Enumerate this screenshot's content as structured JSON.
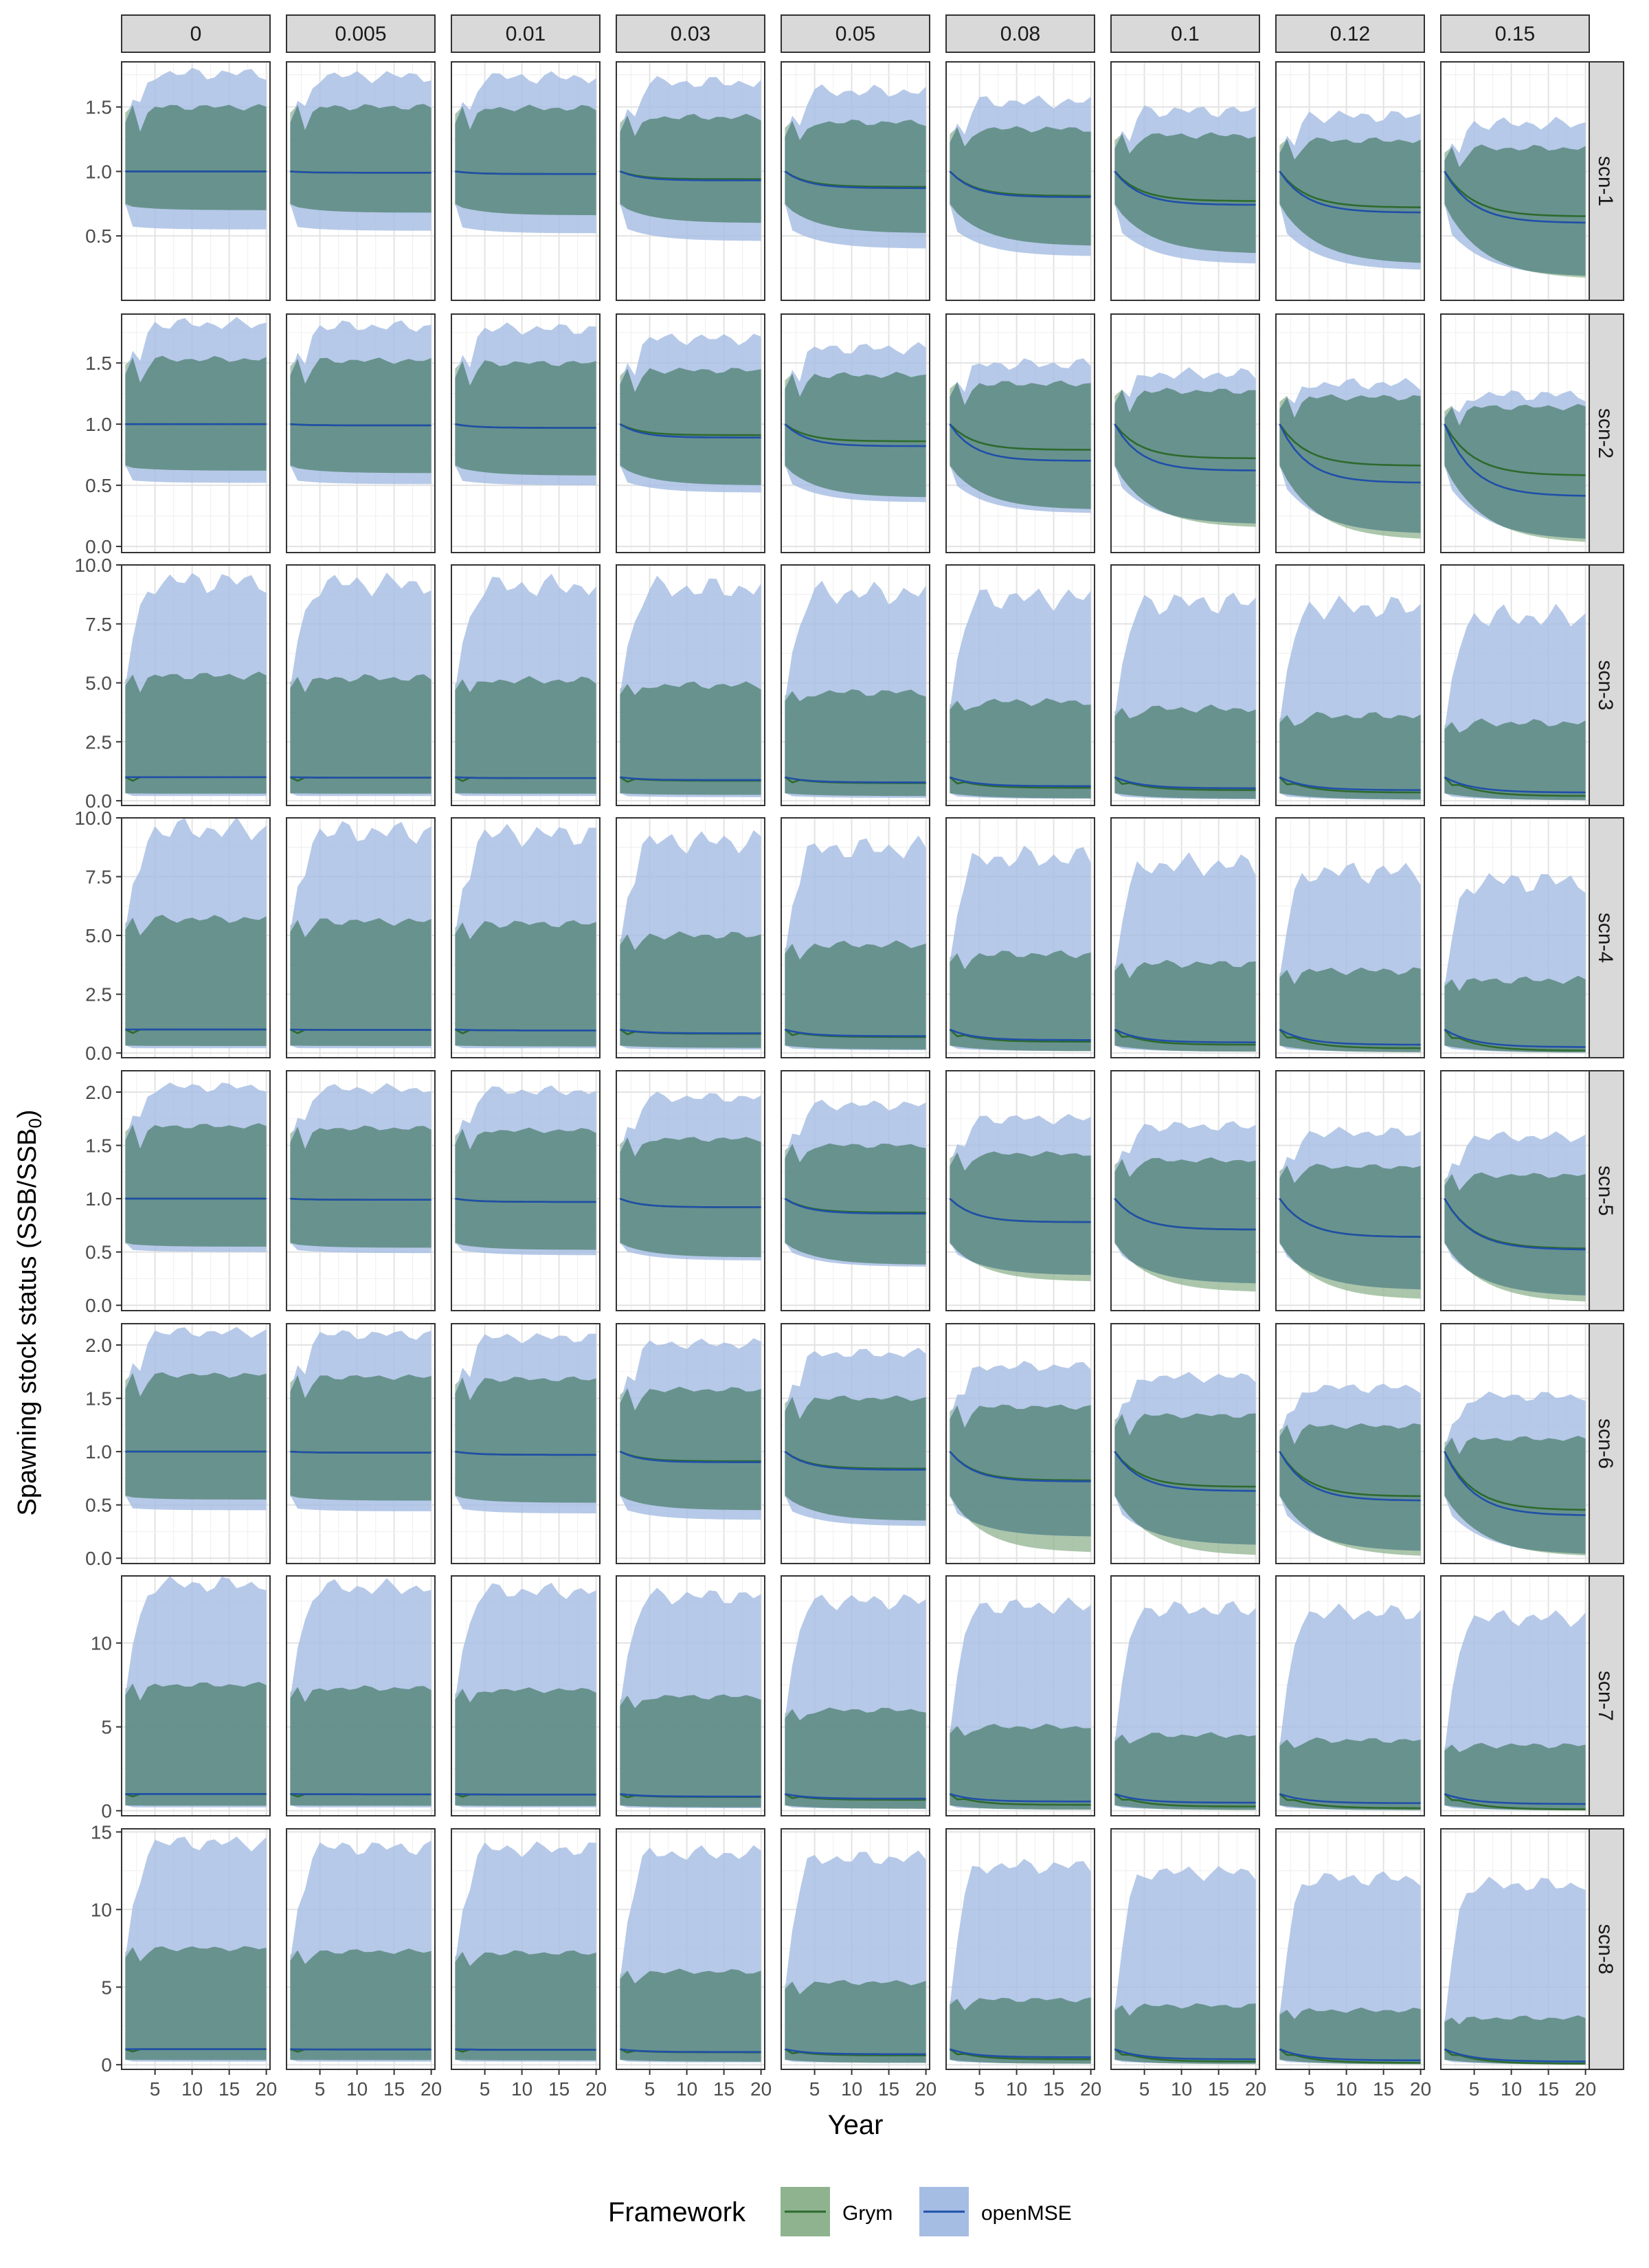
{
  "chart_data": {
    "type": "area",
    "facet_columns": [
      "0",
      "0.005",
      "0.01",
      "0.03",
      "0.05",
      "0.08",
      "0.1",
      "0.12",
      "0.15"
    ],
    "facet_rows": [
      "scn-1",
      "scn-2",
      "scn-3",
      "scn-4",
      "scn-5",
      "scn-6",
      "scn-7",
      "scn-8"
    ],
    "xlabel": "Year",
    "ylabel": "Spawning stock status (SSB/SSB",
    "ylabel_subscript": "0",
    "ylabel_close": ")",
    "x_ticks": [
      5,
      10,
      15,
      20
    ],
    "x_range": [
      0.5,
      20.5
    ],
    "grid": true,
    "legend": {
      "title": "Framework",
      "position": "bottom",
      "entries": [
        {
          "name": "Grym",
          "color": "#2d6a2d",
          "fill": "#8fb38f"
        },
        {
          "name": "openMSE",
          "color": "#1f4fa8",
          "fill": "#a6bde3"
        }
      ]
    },
    "rows": [
      {
        "scenario": "scn-1",
        "ylim": [
          0,
          1.85
        ],
        "yticks": [
          0.5,
          1.0,
          1.5
        ],
        "ytick_labels": [
          "0.5",
          "1.0",
          "1.5"
        ],
        "series": {
          "Grym": {
            "median_final": [
              1.0,
              0.99,
              0.98,
              0.94,
              0.88,
              0.81,
              0.77,
              0.72,
              0.65
            ],
            "upper_final": [
              1.5,
              1.5,
              1.49,
              1.42,
              1.38,
              1.33,
              1.28,
              1.24,
              1.18
            ],
            "lower_final": [
              0.7,
              0.68,
              0.66,
              0.6,
              0.52,
              0.42,
              0.36,
              0.28,
              0.16
            ]
          },
          "openMSE": {
            "median_final": [
              1.0,
              0.99,
              0.98,
              0.93,
              0.87,
              0.8,
              0.74,
              0.68,
              0.6
            ],
            "upper_final": [
              1.76,
              1.74,
              1.73,
              1.69,
              1.62,
              1.54,
              1.47,
              1.43,
              1.37
            ],
            "lower_final": [
              0.55,
              0.54,
              0.52,
              0.46,
              0.4,
              0.34,
              0.28,
              0.23,
              0.18
            ]
          }
        }
      },
      {
        "scenario": "scn-2",
        "ylim": [
          -0.05,
          1.9
        ],
        "yticks": [
          0.0,
          0.5,
          1.0,
          1.5
        ],
        "ytick_labels": [
          "0.0",
          "0.5",
          "1.0",
          "1.5"
        ],
        "series": {
          "Grym": {
            "median_final": [
              1.0,
              0.99,
              0.97,
              0.91,
              0.86,
              0.79,
              0.72,
              0.66,
              0.58
            ],
            "upper_final": [
              1.53,
              1.52,
              1.5,
              1.44,
              1.4,
              1.33,
              1.27,
              1.22,
              1.14
            ],
            "lower_final": [
              0.62,
              0.6,
              0.58,
              0.5,
              0.4,
              0.3,
              0.15,
              0.05,
              0.02
            ]
          },
          "openMSE": {
            "median_final": [
              1.0,
              0.99,
              0.97,
              0.89,
              0.82,
              0.7,
              0.62,
              0.52,
              0.41
            ],
            "upper_final": [
              1.82,
              1.8,
              1.78,
              1.7,
              1.62,
              1.49,
              1.41,
              1.33,
              1.24
            ],
            "lower_final": [
              0.52,
              0.51,
              0.5,
              0.44,
              0.36,
              0.27,
              0.18,
              0.1,
              0.05
            ]
          }
        }
      },
      {
        "scenario": "scn-3",
        "ylim": [
          -0.2,
          10.0
        ],
        "yticks": [
          0.0,
          2.5,
          5.0,
          7.5,
          10.0
        ],
        "ytick_labels": [
          "0.0",
          "2.5",
          "5.0",
          "7.5",
          "10.0"
        ],
        "series": {
          "Grym": {
            "median_final": [
              1.0,
              0.98,
              0.96,
              0.85,
              0.75,
              0.55,
              0.45,
              0.35,
              0.2
            ],
            "upper_final": [
              5.3,
              5.2,
              5.1,
              4.9,
              4.6,
              4.2,
              3.9,
              3.6,
              3.3
            ],
            "lower_final": [
              0.3,
              0.3,
              0.3,
              0.25,
              0.2,
              0.1,
              0.08,
              0.05,
              0.02
            ]
          },
          "openMSE": {
            "median_final": [
              1.0,
              0.98,
              0.96,
              0.88,
              0.78,
              0.62,
              0.53,
              0.45,
              0.35
            ],
            "upper_final": [
              9.3,
              9.2,
              9.1,
              9.0,
              8.8,
              8.6,
              8.4,
              8.2,
              7.8
            ],
            "lower_final": [
              0.2,
              0.2,
              0.2,
              0.15,
              0.12,
              0.08,
              0.06,
              0.04,
              0.02
            ]
          }
        }
      },
      {
        "scenario": "scn-4",
        "ylim": [
          -0.2,
          10.0
        ],
        "yticks": [
          0.0,
          2.5,
          5.0,
          7.5,
          10.0
        ],
        "ytick_labels": [
          "0.0",
          "2.5",
          "5.0",
          "7.5",
          "10.0"
        ],
        "series": {
          "Grym": {
            "median_final": [
              1.0,
              0.98,
              0.96,
              0.82,
              0.68,
              0.48,
              0.35,
              0.2,
              0.1
            ],
            "upper_final": [
              5.7,
              5.6,
              5.5,
              5.0,
              4.6,
              4.2,
              3.8,
              3.5,
              3.1
            ],
            "lower_final": [
              0.3,
              0.3,
              0.28,
              0.22,
              0.15,
              0.08,
              0.05,
              0.02,
              0.01
            ]
          },
          "openMSE": {
            "median_final": [
              1.0,
              0.98,
              0.96,
              0.84,
              0.72,
              0.55,
              0.45,
              0.35,
              0.25
            ],
            "upper_final": [
              9.5,
              9.4,
              9.3,
              9.0,
              8.7,
              8.3,
              8.0,
              7.7,
              7.3
            ],
            "lower_final": [
              0.2,
              0.2,
              0.2,
              0.15,
              0.12,
              0.08,
              0.06,
              0.04,
              0.02
            ]
          }
        }
      },
      {
        "scenario": "scn-5",
        "ylim": [
          -0.05,
          2.2
        ],
        "yticks": [
          0.0,
          0.5,
          1.0,
          1.5,
          2.0
        ],
        "ytick_labels": [
          "0.0",
          "0.5",
          "1.0",
          "1.5",
          "2.0"
        ],
        "series": {
          "Grym": {
            "median_final": [
              1.0,
              0.99,
              0.97,
              0.92,
              0.87,
              0.78,
              0.71,
              0.64,
              0.53
            ],
            "upper_final": [
              1.68,
              1.66,
              1.64,
              1.56,
              1.5,
              1.42,
              1.36,
              1.3,
              1.22
            ],
            "lower_final": [
              0.55,
              0.54,
              0.52,
              0.45,
              0.38,
              0.22,
              0.12,
              0.05,
              0.02
            ]
          },
          "openMSE": {
            "median_final": [
              1.0,
              0.99,
              0.97,
              0.92,
              0.86,
              0.78,
              0.71,
              0.64,
              0.52
            ],
            "upper_final": [
              2.05,
              2.03,
              2.01,
              1.95,
              1.88,
              1.75,
              1.68,
              1.62,
              1.58
            ],
            "lower_final": [
              0.5,
              0.49,
              0.47,
              0.42,
              0.36,
              0.28,
              0.2,
              0.14,
              0.08
            ]
          }
        }
      },
      {
        "scenario": "scn-6",
        "ylim": [
          -0.05,
          2.2
        ],
        "yticks": [
          0.0,
          0.5,
          1.0,
          1.5,
          2.0
        ],
        "ytick_labels": [
          "0.0",
          "0.5",
          "1.0",
          "1.5",
          "2.0"
        ],
        "series": {
          "Grym": {
            "median_final": [
              1.0,
              0.99,
              0.97,
              0.91,
              0.84,
              0.73,
              0.67,
              0.58,
              0.45
            ],
            "upper_final": [
              1.72,
              1.7,
              1.68,
              1.58,
              1.5,
              1.42,
              1.34,
              1.24,
              1.12
            ],
            "lower_final": [
              0.55,
              0.54,
              0.52,
              0.45,
              0.35,
              0.05,
              0.02,
              0.01,
              0.01
            ]
          },
          "openMSE": {
            "median_final": [
              1.0,
              0.99,
              0.97,
              0.9,
              0.83,
              0.72,
              0.63,
              0.54,
              0.4
            ],
            "upper_final": [
              2.12,
              2.1,
              2.07,
              2.01,
              1.92,
              1.8,
              1.7,
              1.6,
              1.52
            ],
            "lower_final": [
              0.45,
              0.44,
              0.42,
              0.36,
              0.3,
              0.2,
              0.12,
              0.06,
              0.03
            ]
          }
        }
      },
      {
        "scenario": "scn-7",
        "ylim": [
          -0.3,
          14.0
        ],
        "yticks": [
          0,
          5,
          10
        ],
        "ytick_labels": [
          "0",
          "5",
          "10"
        ],
        "series": {
          "Grym": {
            "median_final": [
              1.0,
              0.98,
              0.96,
              0.82,
              0.65,
              0.35,
              0.25,
              0.15,
              0.08
            ],
            "upper_final": [
              7.5,
              7.3,
              7.2,
              6.8,
              6.0,
              5.0,
              4.5,
              4.2,
              3.9
            ],
            "lower_final": [
              0.3,
              0.3,
              0.28,
              0.2,
              0.12,
              0.05,
              0.03,
              0.02,
              0.01
            ]
          },
          "openMSE": {
            "median_final": [
              1.0,
              0.98,
              0.96,
              0.85,
              0.72,
              0.55,
              0.48,
              0.45,
              0.4
            ],
            "upper_final": [
              13.5,
              13.3,
              13.1,
              12.8,
              12.5,
              12.2,
              12.0,
              11.8,
              11.5
            ],
            "lower_final": [
              0.2,
              0.2,
              0.2,
              0.15,
              0.12,
              0.08,
              0.06,
              0.04,
              0.02
            ]
          }
        }
      },
      {
        "scenario": "scn-8",
        "ylim": [
          -0.3,
          15.2
        ],
        "yticks": [
          0,
          5,
          10,
          15
        ],
        "ytick_labels": [
          "0",
          "5",
          "10",
          "15"
        ],
        "series": {
          "Grym": {
            "median_final": [
              1.0,
              0.98,
              0.96,
              0.8,
              0.6,
              0.35,
              0.2,
              0.12,
              0.06
            ],
            "upper_final": [
              7.5,
              7.3,
              7.2,
              6.0,
              5.3,
              4.2,
              3.8,
              3.5,
              3.0
            ],
            "lower_final": [
              0.3,
              0.3,
              0.28,
              0.2,
              0.12,
              0.05,
              0.03,
              0.02,
              0.01
            ]
          },
          "openMSE": {
            "median_final": [
              1.0,
              0.98,
              0.96,
              0.82,
              0.68,
              0.48,
              0.35,
              0.28,
              0.2
            ],
            "upper_final": [
              14.3,
              14.0,
              13.9,
              13.6,
              13.3,
              12.8,
              12.4,
              12.0,
              11.6
            ],
            "lower_final": [
              0.2,
              0.2,
              0.2,
              0.15,
              0.12,
              0.08,
              0.06,
              0.04,
              0.02
            ]
          }
        }
      }
    ]
  }
}
